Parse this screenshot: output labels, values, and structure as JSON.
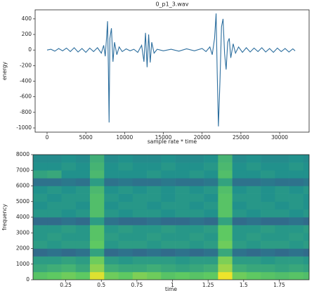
{
  "chart_data": [
    {
      "type": "line",
      "title": "0_p1_3.wav",
      "xlabel": "sample rate * time",
      "ylabel": "energy",
      "color": "#2c6e9e",
      "xlim": [
        -1540,
        33800
      ],
      "ylim": [
        -1054,
        516
      ],
      "xticks": [
        0,
        5000,
        10000,
        15000,
        20000,
        25000,
        30000
      ],
      "yticks": [
        400,
        200,
        0,
        -200,
        -400,
        -600,
        -800,
        -1000
      ],
      "x": [
        0,
        500,
        1000,
        1500,
        2000,
        2500,
        3000,
        3500,
        4000,
        4500,
        5000,
        5500,
        6000,
        6500,
        7000,
        7300,
        7500,
        7700,
        7800,
        7900,
        8000,
        8100,
        8300,
        8500,
        8700,
        9000,
        9300,
        9700,
        10200,
        10700,
        11200,
        11700,
        12200,
        12500,
        12700,
        12900,
        13100,
        13300,
        13500,
        13800,
        14200,
        15000,
        16000,
        17000,
        18000,
        19000,
        20000,
        20500,
        21000,
        21300,
        21600,
        21800,
        21950,
        22100,
        22300,
        22500,
        22700,
        22900,
        23100,
        23300,
        23500,
        23700,
        24000,
        24300,
        24700,
        25200,
        25700,
        26200,
        26700,
        27200,
        27700,
        28200,
        28700,
        29200,
        29700,
        30200,
        30700,
        31200,
        31700,
        32000
      ],
      "values": [
        0,
        10,
        -15,
        20,
        -10,
        25,
        -20,
        30,
        -25,
        20,
        -30,
        25,
        -20,
        30,
        -40,
        60,
        -80,
        200,
        370,
        -200,
        -930,
        150,
        280,
        -150,
        100,
        -60,
        40,
        -20,
        15,
        -10,
        10,
        -30,
        60,
        -150,
        220,
        -220,
        200,
        -160,
        100,
        -40,
        10,
        -10,
        10,
        -15,
        15,
        -10,
        20,
        -20,
        40,
        -60,
        150,
        470,
        -300,
        -980,
        -400,
        300,
        400,
        -50,
        -250,
        100,
        150,
        -100,
        80,
        -40,
        40,
        -30,
        30,
        -25,
        25,
        -20,
        30,
        -25,
        20,
        -30,
        25,
        -20,
        20,
        -25,
        15,
        -10
      ]
    },
    {
      "type": "heatmap",
      "xlabel": "time",
      "ylabel": "frequency",
      "colormap": "viridis",
      "clim": [
        -10,
        30
      ],
      "xlim": [
        0.02,
        1.96
      ],
      "ylim": [
        0,
        8000
      ],
      "xticks": [
        0.25,
        0.5,
        0.75,
        1.0,
        1.25,
        1.5,
        1.75
      ],
      "xtick_labels_note_free": null,
      "yticks": [
        0,
        1000,
        2000,
        3000,
        4000,
        5000,
        6000,
        7000,
        8000
      ],
      "x": [
        0.07,
        0.17,
        0.27,
        0.37,
        0.47,
        0.57,
        0.67,
        0.77,
        0.87,
        0.97,
        1.07,
        1.17,
        1.27,
        1.37,
        1.47,
        1.57,
        1.67,
        1.77,
        1.87,
        1.97
      ],
      "y": [
        250,
        750,
        1250,
        1750,
        2250,
        2750,
        3250,
        3750,
        4250,
        4750,
        5250,
        5750,
        6250,
        6750,
        7250,
        7750
      ],
      "z": [
        [
          19,
          20,
          21,
          20,
          28,
          21,
          20,
          22,
          21,
          19,
          20,
          19,
          20,
          29,
          21,
          20,
          19,
          18,
          19,
          18
        ],
        [
          14,
          15,
          16,
          14,
          23,
          15,
          14,
          14,
          15,
          14,
          13,
          14,
          15,
          24,
          15,
          14,
          14,
          13,
          14,
          13
        ],
        [
          12,
          12,
          13,
          12,
          21,
          12,
          11,
          12,
          12,
          12,
          11,
          12,
          12,
          22,
          12,
          12,
          11,
          12,
          12,
          11
        ],
        [
          4,
          5,
          4,
          5,
          13,
          4,
          5,
          4,
          5,
          4,
          5,
          4,
          5,
          14,
          5,
          4,
          5,
          4,
          5,
          4
        ],
        [
          12,
          11,
          12,
          12,
          20,
          11,
          12,
          12,
          11,
          12,
          12,
          11,
          12,
          21,
          12,
          11,
          12,
          12,
          11,
          12
        ],
        [
          11,
          12,
          11,
          11,
          19,
          12,
          11,
          11,
          12,
          11,
          11,
          12,
          11,
          20,
          11,
          12,
          11,
          11,
          12,
          11
        ],
        [
          11,
          11,
          12,
          11,
          19,
          11,
          12,
          11,
          11,
          12,
          11,
          11,
          12,
          20,
          11,
          11,
          12,
          11,
          11,
          12
        ],
        [
          4,
          4,
          5,
          4,
          12,
          5,
          4,
          4,
          5,
          4,
          4,
          5,
          4,
          13,
          4,
          5,
          4,
          4,
          5,
          4
        ],
        [
          11,
          11,
          10,
          11,
          18,
          11,
          10,
          11,
          11,
          10,
          11,
          11,
          10,
          19,
          11,
          10,
          11,
          11,
          10,
          11
        ],
        [
          10,
          11,
          11,
          10,
          18,
          10,
          11,
          11,
          10,
          11,
          11,
          10,
          11,
          19,
          10,
          11,
          11,
          10,
          11,
          10
        ],
        [
          11,
          10,
          11,
          11,
          18,
          11,
          10,
          11,
          11,
          10,
          11,
          11,
          10,
          19,
          11,
          11,
          10,
          11,
          11,
          10
        ],
        [
          10,
          11,
          10,
          11,
          17,
          10,
          11,
          10,
          11,
          10,
          11,
          10,
          11,
          18,
          10,
          11,
          10,
          11,
          10,
          11
        ],
        [
          5,
          5,
          6,
          5,
          12,
          5,
          6,
          5,
          5,
          6,
          5,
          5,
          6,
          13,
          5,
          5,
          6,
          5,
          5,
          6
        ],
        [
          13,
          14,
          10,
          10,
          17,
          10,
          10,
          10,
          11,
          10,
          10,
          11,
          10,
          18,
          10,
          10,
          11,
          10,
          10,
          10
        ],
        [
          10,
          10,
          11,
          10,
          16,
          10,
          11,
          10,
          10,
          11,
          10,
          10,
          11,
          17,
          10,
          11,
          10,
          10,
          11,
          10
        ],
        [
          9,
          9,
          10,
          9,
          15,
          9,
          10,
          9,
          9,
          10,
          9,
          9,
          10,
          16,
          9,
          10,
          9,
          9,
          10,
          9
        ]
      ]
    }
  ]
}
